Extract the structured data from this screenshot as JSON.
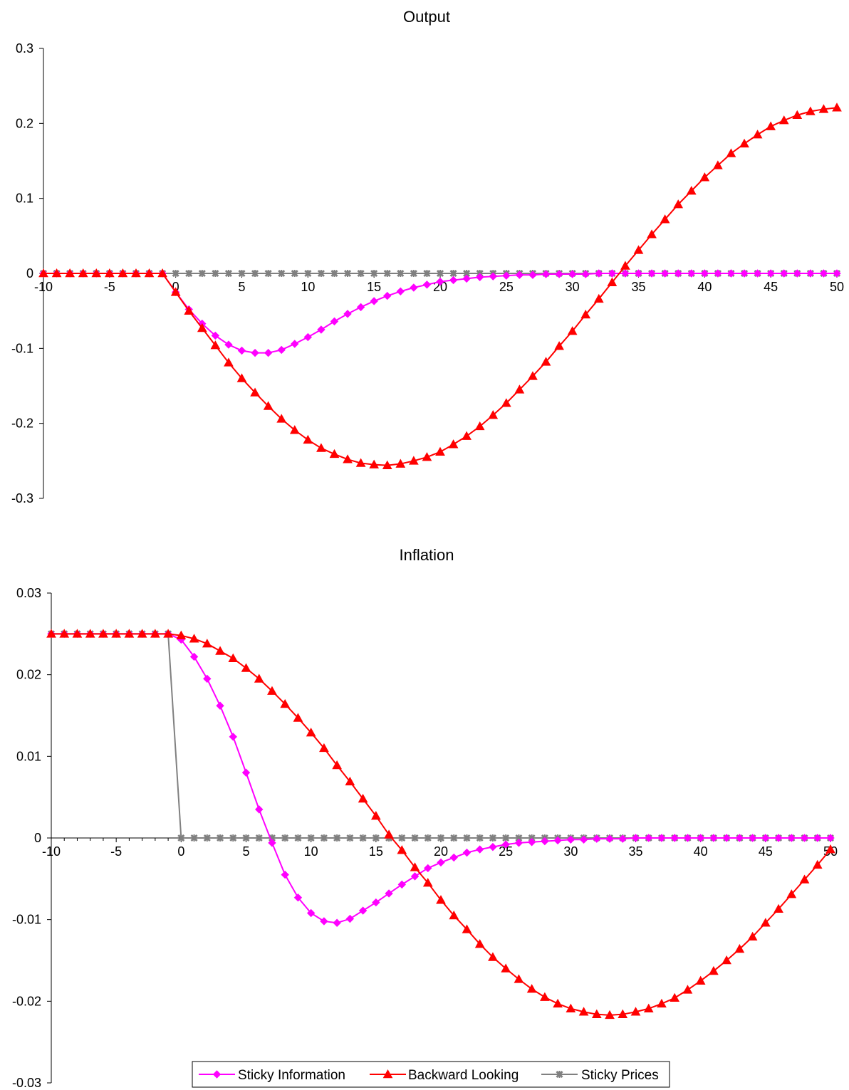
{
  "chart_data": [
    {
      "type": "line",
      "title": "Output",
      "xlabel": "",
      "ylabel": "",
      "x": [
        -10,
        -9,
        -8,
        -7,
        -6,
        -5,
        -4,
        -3,
        -2,
        -1,
        0,
        1,
        2,
        3,
        4,
        5,
        6,
        7,
        8,
        9,
        10,
        11,
        12,
        13,
        14,
        15,
        16,
        17,
        18,
        19,
        20,
        21,
        22,
        23,
        24,
        25,
        26,
        27,
        28,
        29,
        30,
        31,
        32,
        33,
        34,
        35,
        36,
        37,
        38,
        39,
        40,
        41,
        42,
        43,
        44,
        45,
        46,
        47,
        48,
        49,
        50
      ],
      "xlim": [
        -10,
        50
      ],
      "ylim": [
        -0.3,
        0.3
      ],
      "x_ticks": [
        -10,
        -5,
        0,
        5,
        10,
        15,
        20,
        25,
        30,
        35,
        40,
        45,
        50
      ],
      "y_ticks": [
        -0.3,
        -0.2,
        -0.1,
        0,
        0.1,
        0.2,
        0.3
      ],
      "y_tick_labels": [
        "-0.3",
        "-0.2",
        "-0.1",
        "0",
        "0.1",
        "0.2",
        "0.3"
      ],
      "grid": false,
      "legend_position": "none",
      "series": [
        {
          "name": "Sticky Information",
          "color": "#FF00FF",
          "marker": "diamond",
          "values": [
            0,
            0,
            0,
            0,
            0,
            0,
            0,
            0,
            0,
            0,
            -0.025,
            -0.048,
            -0.067,
            -0.083,
            -0.095,
            -0.103,
            -0.106,
            -0.106,
            -0.102,
            -0.094,
            -0.085,
            -0.075,
            -0.064,
            -0.054,
            -0.045,
            -0.037,
            -0.03,
            -0.024,
            -0.019,
            -0.015,
            -0.011,
            -0.009,
            -0.007,
            -0.005,
            -0.004,
            -0.003,
            -0.002,
            -0.002,
            -0.001,
            -0.001,
            -0.001,
            -0.001,
            0,
            0,
            0,
            0,
            0,
            0,
            0,
            0,
            0,
            0,
            0,
            0,
            0,
            0,
            0,
            0,
            0,
            0,
            0
          ]
        },
        {
          "name": "Backward Looking",
          "color": "#FF0000",
          "marker": "triangle",
          "values": [
            0,
            0,
            0,
            0,
            0,
            0,
            0,
            0,
            0,
            0,
            -0.025,
            -0.05,
            -0.073,
            -0.096,
            -0.119,
            -0.14,
            -0.159,
            -0.177,
            -0.194,
            -0.209,
            -0.222,
            -0.233,
            -0.241,
            -0.248,
            -0.253,
            -0.255,
            -0.256,
            -0.254,
            -0.25,
            -0.245,
            -0.238,
            -0.228,
            -0.217,
            -0.204,
            -0.189,
            -0.173,
            -0.155,
            -0.137,
            -0.118,
            -0.097,
            -0.077,
            -0.055,
            -0.034,
            -0.012,
            0.01,
            0.031,
            0.052,
            0.072,
            0.092,
            0.11,
            0.128,
            0.144,
            0.16,
            0.173,
            0.185,
            0.196,
            0.204,
            0.211,
            0.216,
            0.219,
            0.221
          ]
        },
        {
          "name": "Sticky Prices",
          "color": "#808080",
          "marker": "star",
          "values": [
            0,
            0,
            0,
            0,
            0,
            0,
            0,
            0,
            0,
            0,
            0,
            0,
            0,
            0,
            0,
            0,
            0,
            0,
            0,
            0,
            0,
            0,
            0,
            0,
            0,
            0,
            0,
            0,
            0,
            0,
            0,
            0,
            0,
            0,
            0,
            0,
            0,
            0,
            0,
            0,
            0,
            0,
            0,
            0,
            0,
            0,
            0,
            0,
            0,
            0,
            0,
            0,
            0,
            0,
            0,
            0,
            0,
            0,
            0,
            0,
            0
          ]
        }
      ]
    },
    {
      "type": "line",
      "title": "Inflation",
      "xlabel": "",
      "ylabel": "",
      "x": [
        -10,
        -9,
        -8,
        -7,
        -6,
        -5,
        -4,
        -3,
        -2,
        -1,
        0,
        1,
        2,
        3,
        4,
        5,
        6,
        7,
        8,
        9,
        10,
        11,
        12,
        13,
        14,
        15,
        16,
        17,
        18,
        19,
        20,
        21,
        22,
        23,
        24,
        25,
        26,
        27,
        28,
        29,
        30,
        31,
        32,
        33,
        34,
        35,
        36,
        37,
        38,
        39,
        40,
        41,
        42,
        43,
        44,
        45,
        46,
        47,
        48,
        49,
        50
      ],
      "xlim": [
        -10,
        50
      ],
      "ylim": [
        -0.03,
        0.03
      ],
      "x_ticks": [
        -10,
        -5,
        0,
        5,
        10,
        15,
        20,
        25,
        30,
        35,
        40,
        45,
        50
      ],
      "y_ticks": [
        -0.03,
        -0.02,
        -0.01,
        0,
        0.01,
        0.02,
        0.03
      ],
      "y_tick_labels": [
        "-0.03",
        "-0.02",
        "-0.01",
        "0",
        "0.01",
        "0.02",
        "0.03"
      ],
      "grid": false,
      "legend_position": "bottom",
      "series": [
        {
          "name": "Sticky Information",
          "color": "#FF00FF",
          "marker": "diamond",
          "values": [
            0.025,
            0.025,
            0.025,
            0.025,
            0.025,
            0.025,
            0.025,
            0.025,
            0.025,
            0.025,
            0.0243,
            0.0222,
            0.0195,
            0.0162,
            0.0124,
            0.008,
            0.0035,
            -0.0006,
            -0.0045,
            -0.0073,
            -0.0092,
            -0.0102,
            -0.0104,
            -0.0099,
            -0.0089,
            -0.0079,
            -0.0068,
            -0.0057,
            -0.0047,
            -0.0037,
            -0.003,
            -0.0024,
            -0.0018,
            -0.0014,
            -0.0011,
            -0.0008,
            -0.0006,
            -0.0005,
            -0.0004,
            -0.0003,
            -0.0002,
            -0.0002,
            -0.0001,
            -0.0001,
            -0.0001,
            0,
            0,
            0,
            0,
            0,
            0,
            0,
            0,
            0,
            0,
            0,
            0,
            0,
            0,
            0,
            0
          ]
        },
        {
          "name": "Backward Looking",
          "color": "#FF0000",
          "marker": "triangle",
          "values": [
            0.025,
            0.025,
            0.025,
            0.025,
            0.025,
            0.025,
            0.025,
            0.025,
            0.025,
            0.025,
            0.0248,
            0.0244,
            0.0238,
            0.0229,
            0.022,
            0.0208,
            0.0195,
            0.018,
            0.0164,
            0.0147,
            0.0129,
            0.011,
            0.0089,
            0.0069,
            0.0048,
            0.0027,
            0.0004,
            -0.0015,
            -0.0036,
            -0.0055,
            -0.0076,
            -0.0095,
            -0.0112,
            -0.013,
            -0.0146,
            -0.016,
            -0.0173,
            -0.0185,
            -0.0195,
            -0.0203,
            -0.0209,
            -0.0213,
            -0.0216,
            -0.0217,
            -0.0216,
            -0.0213,
            -0.0209,
            -0.0203,
            -0.0196,
            -0.0186,
            -0.0175,
            -0.0163,
            -0.015,
            -0.0136,
            -0.0121,
            -0.0104,
            -0.0087,
            -0.0069,
            -0.0051,
            -0.0033,
            -0.0014
          ]
        },
        {
          "name": "Sticky Prices",
          "color": "#808080",
          "marker": "star",
          "values": [
            0.025,
            0.025,
            0.025,
            0.025,
            0.025,
            0.025,
            0.025,
            0.025,
            0.025,
            0.025,
            0,
            0,
            0,
            0,
            0,
            0,
            0,
            0,
            0,
            0,
            0,
            0,
            0,
            0,
            0,
            0,
            0,
            0,
            0,
            0,
            0,
            0,
            0,
            0,
            0,
            0,
            0,
            0,
            0,
            0,
            0,
            0,
            0,
            0,
            0,
            0,
            0,
            0,
            0,
            0,
            0,
            0,
            0,
            0,
            0,
            0,
            0,
            0,
            0,
            0,
            0
          ]
        }
      ]
    }
  ]
}
